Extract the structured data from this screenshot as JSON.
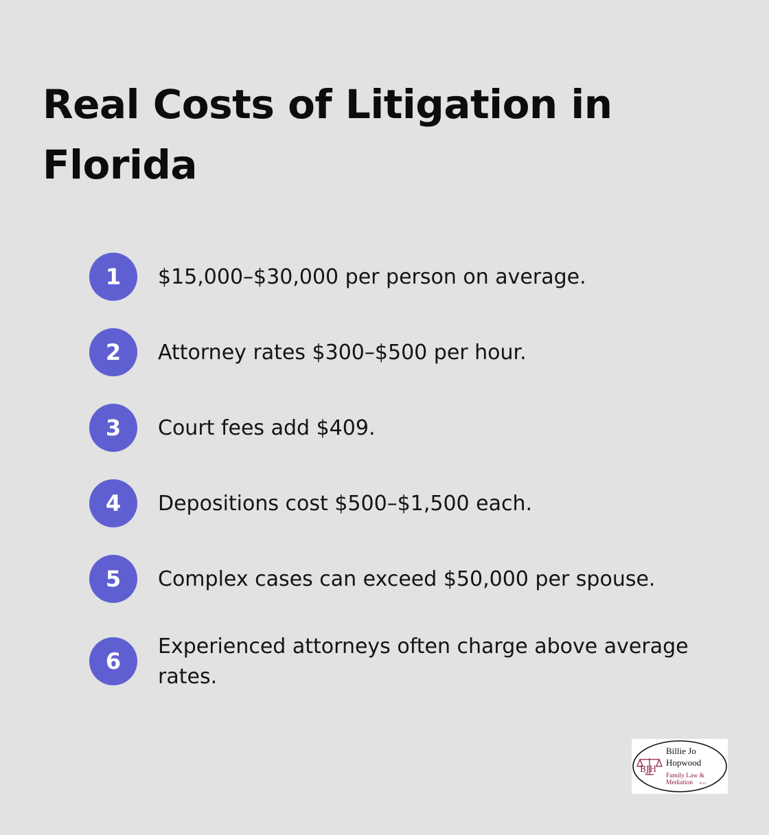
{
  "title": "Real Costs of Litigation in Florida",
  "items": [
    {
      "number": "1",
      "text": "$15,000–$30,000 per person on average."
    },
    {
      "number": "2",
      "text": "Attorney rates $300–$500 per hour."
    },
    {
      "number": "3",
      "text": "Court fees add $409."
    },
    {
      "number": "4",
      "text": "Depositions cost $500–$1,500 each."
    },
    {
      "number": "5",
      "text": "Complex cases can exceed $50,000 per spouse."
    },
    {
      "number": "6",
      "text": "Experienced attorneys often charge above average rates."
    }
  ],
  "logo": {
    "line1": "Billie Jo",
    "line2": "Hopwood",
    "line3": "Family Law &",
    "line4": "Mediation",
    "suffix": "PLLC",
    "monogram": "BJH"
  },
  "colors": {
    "background": "#e1e2e1",
    "badge": "#5f5fd2",
    "logo_accent": "#8b1a3a"
  }
}
